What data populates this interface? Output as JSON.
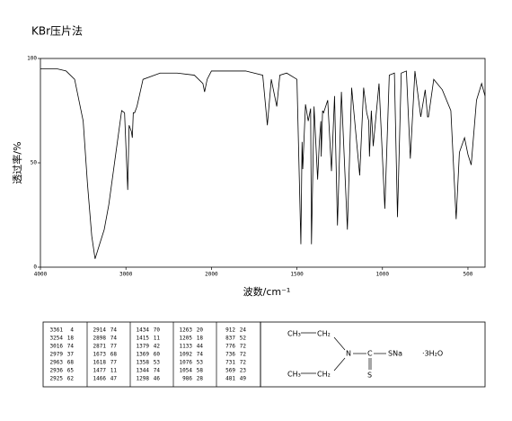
{
  "chart_data": {
    "type": "line",
    "title": "KBr压片法",
    "x_label": "波数/cm⁻¹",
    "y_label": "透过率/%",
    "xlim": [
      4000,
      400
    ],
    "x_scale_break": 2000,
    "xticks": [
      4000,
      3000,
      2000,
      1500,
      1000,
      500
    ],
    "ylim": [
      0,
      100
    ],
    "yticks": [
      0,
      50,
      100
    ],
    "color": "#000000",
    "x": [
      4000,
      3800,
      3700,
      3600,
      3500,
      3450,
      3400,
      3361,
      3300,
      3254,
      3200,
      3100,
      3050,
      3016,
      2979,
      2963,
      2936,
      2925,
      2914,
      2898,
      2871,
      2800,
      2600,
      2400,
      2200,
      2100,
      2080,
      2050,
      2000,
      1900,
      1800,
      1700,
      1673,
      1650,
      1618,
      1600,
      1560,
      1500,
      1477,
      1470,
      1466,
      1450,
      1434,
      1420,
      1415,
      1400,
      1379,
      1369,
      1360,
      1358,
      1350,
      1344,
      1320,
      1298,
      1280,
      1263,
      1240,
      1205,
      1180,
      1133,
      1110,
      1092,
      1080,
      1076,
      1065,
      1054,
      1020,
      986,
      960,
      930,
      912,
      890,
      860,
      837,
      810,
      776,
      750,
      736,
      731,
      700,
      650,
      600,
      569,
      550,
      520,
      500,
      481,
      450,
      420,
      400
    ],
    "values": [
      95,
      95,
      94,
      90,
      70,
      40,
      15,
      4,
      12,
      18,
      30,
      60,
      75,
      74,
      37,
      68,
      65,
      62,
      74,
      74,
      77,
      90,
      93,
      93,
      92,
      88,
      84,
      90,
      94,
      94,
      94,
      92,
      68,
      90,
      77,
      92,
      93,
      90,
      11,
      60,
      47,
      78,
      70,
      76,
      11,
      77,
      42,
      60,
      70,
      53,
      75,
      74,
      80,
      46,
      82,
      20,
      84,
      18,
      86,
      44,
      86,
      74,
      70,
      53,
      75,
      58,
      88,
      28,
      92,
      93,
      24,
      93,
      94,
      52,
      94,
      72,
      85,
      72,
      72,
      90,
      85,
      75,
      23,
      55,
      62,
      54,
      49,
      80,
      88,
      82
    ]
  },
  "table": {
    "rows": [
      [
        3361,
        4,
        2914,
        74,
        1434,
        70,
        1263,
        20,
        912,
        24
      ],
      [
        3254,
        18,
        2898,
        74,
        1415,
        11,
        1205,
        18,
        837,
        52
      ],
      [
        3016,
        74,
        2871,
        77,
        1379,
        42,
        1133,
        44,
        776,
        72
      ],
      [
        2979,
        37,
        1673,
        68,
        1369,
        60,
        1092,
        74,
        736,
        72
      ],
      [
        2963,
        68,
        1618,
        77,
        1358,
        53,
        1076,
        53,
        731,
        72
      ],
      [
        2936,
        65,
        1477,
        11,
        1344,
        74,
        1054,
        58,
        569,
        23
      ],
      [
        2925,
        62,
        1466,
        47,
        1298,
        46,
        986,
        28,
        481,
        49
      ]
    ]
  },
  "structure": {
    "top_left": "CH₃",
    "top_right": "CH₂",
    "nitrogen": "N",
    "carbon": "C",
    "thiolate": "SNa",
    "sulfur": "S",
    "bottom_left": "CH₃",
    "bottom_right": "CH₂",
    "hydrate": "·3H₂O"
  }
}
